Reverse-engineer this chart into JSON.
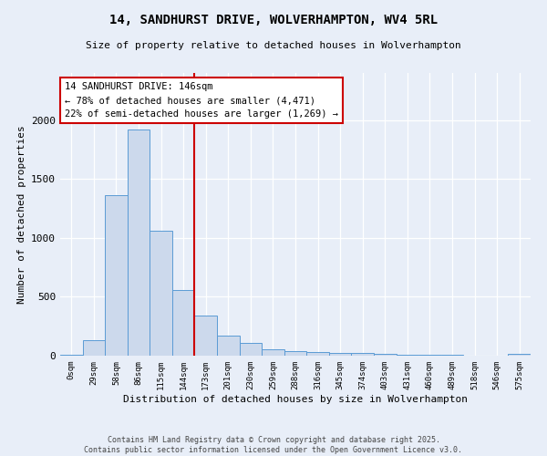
{
  "title": "14, SANDHURST DRIVE, WOLVERHAMPTON, WV4 5RL",
  "subtitle": "Size of property relative to detached houses in Wolverhampton",
  "xlabel": "Distribution of detached houses by size in Wolverhampton",
  "ylabel": "Number of detached properties",
  "bin_labels": [
    "0sqm",
    "29sqm",
    "58sqm",
    "86sqm",
    "115sqm",
    "144sqm",
    "173sqm",
    "201sqm",
    "230sqm",
    "259sqm",
    "288sqm",
    "316sqm",
    "345sqm",
    "374sqm",
    "403sqm",
    "431sqm",
    "460sqm",
    "489sqm",
    "518sqm",
    "546sqm",
    "575sqm"
  ],
  "bar_values": [
    10,
    130,
    1360,
    1920,
    1060,
    560,
    340,
    170,
    105,
    55,
    35,
    30,
    25,
    20,
    15,
    8,
    8,
    5,
    3,
    3,
    15
  ],
  "bar_color": "#ccd9ec",
  "bar_edge_color": "#5b9bd5",
  "vline_color": "#cc0000",
  "vline_position": 5.5,
  "annotation_text": "14 SANDHURST DRIVE: 146sqm\n← 78% of detached houses are smaller (4,471)\n22% of semi-detached houses are larger (1,269) →",
  "annotation_box_color": "#ffffff",
  "annotation_box_edge_color": "#cc0000",
  "ylim": [
    0,
    2400
  ],
  "background_color": "#e8eef8",
  "footer1": "Contains HM Land Registry data © Crown copyright and database right 2025.",
  "footer2": "Contains public sector information licensed under the Open Government Licence v3.0."
}
